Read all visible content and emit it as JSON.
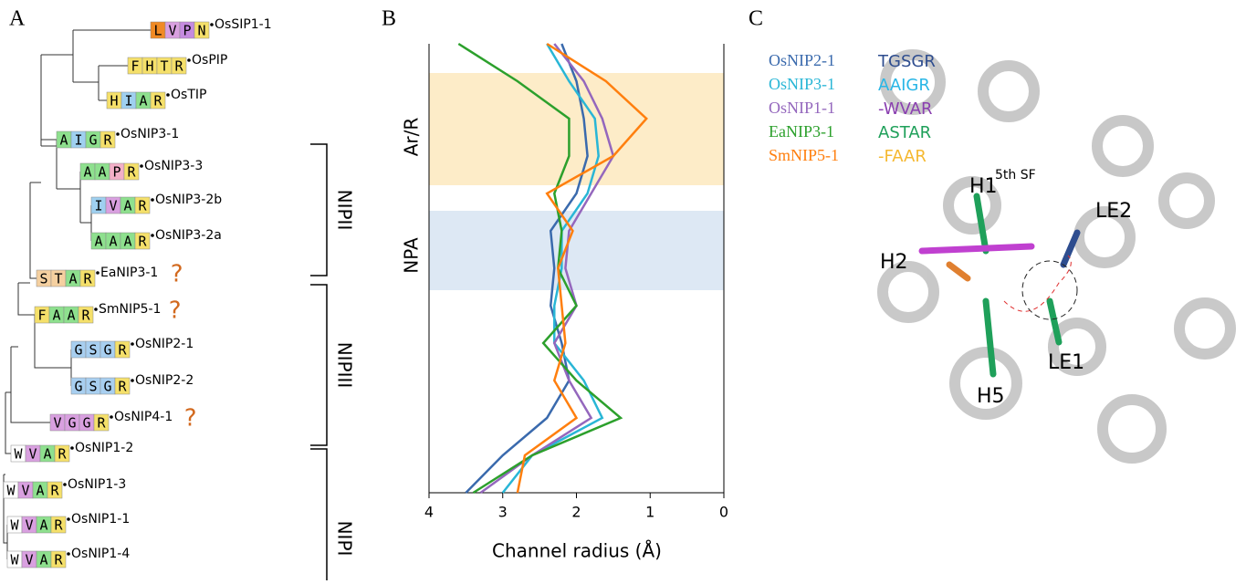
{
  "panel_labels": [
    "A",
    "B",
    "C"
  ],
  "tree": {
    "leaves": [
      {
        "motif": [
          "L",
          "V",
          "P",
          "N"
        ],
        "colors": [
          "#f08a24",
          "#d9a0e0",
          "#c58be0",
          "#f5e06a"
        ],
        "label": "OsSIP1-1"
      },
      {
        "motif": [
          "F",
          "H",
          "T",
          "R"
        ],
        "colors": [
          "#f5e06a",
          "#f5e06a",
          "#f5e06a",
          "#f5e06a"
        ],
        "label": "OsPIP"
      },
      {
        "motif": [
          "H",
          "I",
          "A",
          "R"
        ],
        "colors": [
          "#f5e06a",
          "#9fd0f0",
          "#8ee08e",
          "#f5e06a"
        ],
        "label": "OsTIP"
      },
      {
        "motif": [
          "A",
          "I",
          "G",
          "R"
        ],
        "colors": [
          "#8ee08e",
          "#9fd0f0",
          "#8ee08e",
          "#f5e06a"
        ],
        "label": "OsNIP3-1"
      },
      {
        "motif": [
          "A",
          "A",
          "P",
          "R"
        ],
        "colors": [
          "#8ee08e",
          "#8ee08e",
          "#f3b0c8",
          "#f5e06a"
        ],
        "label": "OsNIP3-3"
      },
      {
        "motif": [
          "I",
          "V",
          "A",
          "R"
        ],
        "colors": [
          "#9fd0f0",
          "#d9a0e0",
          "#8ee08e",
          "#f5e06a"
        ],
        "label": "OsNIP3-2b"
      },
      {
        "motif": [
          "A",
          "A",
          "A",
          "R"
        ],
        "colors": [
          "#8ee08e",
          "#8ee08e",
          "#8ee08e",
          "#f5e06a"
        ],
        "label": "OsNIP3-2a"
      },
      {
        "motif": [
          "S",
          "T",
          "A",
          "R"
        ],
        "colors": [
          "#f5d0a0",
          "#f5d0a0",
          "#8ee08e",
          "#f5e06a"
        ],
        "label": "EaNIP3-1",
        "mark": "?"
      },
      {
        "motif": [
          "F",
          "A",
          "A",
          "R"
        ],
        "colors": [
          "#f5e06a",
          "#8ee08e",
          "#8ee08e",
          "#f5e06a"
        ],
        "label": "SmNIP5-1",
        "mark": "?"
      },
      {
        "motif": [
          "G",
          "S",
          "G",
          "R"
        ],
        "colors": [
          "#a8cff0",
          "#a8cff0",
          "#a8cff0",
          "#f5e06a"
        ],
        "label": "OsNIP2-1"
      },
      {
        "motif": [
          "G",
          "S",
          "G",
          "R"
        ],
        "colors": [
          "#a8cff0",
          "#a8cff0",
          "#a8cff0",
          "#f5e06a"
        ],
        "label": "OsNIP2-2"
      },
      {
        "motif": [
          "V",
          "G",
          "G",
          "R"
        ],
        "colors": [
          "#d9a0e0",
          "#d9a0e0",
          "#d9a0e0",
          "#f5e06a"
        ],
        "label": "OsNIP4-1",
        "mark": "?"
      },
      {
        "motif": [
          "W",
          "V",
          "A",
          "R"
        ],
        "colors": [
          "#ffffff",
          "#d9a0e0",
          "#8ee08e",
          "#f5e06a"
        ],
        "label": "OsNIP1-2"
      },
      {
        "motif": [
          "W",
          "V",
          "A",
          "R"
        ],
        "colors": [
          "#ffffff",
          "#d9a0e0",
          "#8ee08e",
          "#f5e06a"
        ],
        "label": "OsNIP1-3"
      },
      {
        "motif": [
          "W",
          "V",
          "A",
          "R"
        ],
        "colors": [
          "#ffffff",
          "#d9a0e0",
          "#8ee08e",
          "#f5e06a"
        ],
        "label": "OsNIP1-1"
      },
      {
        "motif": [
          "W",
          "V",
          "A",
          "R"
        ],
        "colors": [
          "#ffffff",
          "#d9a0e0",
          "#8ee08e",
          "#f5e06a"
        ],
        "label": "OsNIP1-4"
      }
    ],
    "groups": [
      "NIPII",
      "NIPIII",
      "NIPI"
    ]
  },
  "chart_data": {
    "type": "line",
    "orientation": "horizontal",
    "x_label": "Channel radius (Å)",
    "xlim": [
      4,
      0
    ],
    "xticks": [
      4,
      3,
      2,
      1,
      0
    ],
    "categories": [
      null,
      null,
      null,
      null,
      null,
      null,
      null,
      null,
      null,
      null,
      null,
      null,
      null
    ],
    "annotations": [
      "Ar/R",
      "NPA"
    ],
    "series": [
      {
        "name": "OsNIP2-1",
        "color": "#3a6aad",
        "values": [
          2.2,
          2.0,
          1.9,
          1.85,
          2.0,
          2.35,
          2.3,
          2.35,
          2.2,
          2.1,
          2.4,
          3.0,
          3.5
        ]
      },
      {
        "name": "OsNIP3-1",
        "color": "#29b6d6",
        "values": [
          2.4,
          2.1,
          1.75,
          1.7,
          1.85,
          2.2,
          2.2,
          2.3,
          2.3,
          1.9,
          1.65,
          2.6,
          3.0
        ]
      },
      {
        "name": "OsNIP1-1",
        "color": "#9467bd",
        "values": [
          2.3,
          1.9,
          1.65,
          1.5,
          1.8,
          2.1,
          2.15,
          2.0,
          2.3,
          2.1,
          1.8,
          2.6,
          3.3
        ]
      },
      {
        "name": "EaNIP3-1",
        "color": "#2ca02c",
        "values": [
          3.6,
          2.8,
          2.1,
          2.1,
          2.3,
          2.2,
          2.25,
          2.0,
          2.45,
          2.0,
          1.4,
          2.6,
          3.4
        ]
      },
      {
        "name": "SmNIP5-1",
        "color": "#ff7f0e",
        "values": [
          2.4,
          1.6,
          1.05,
          1.5,
          2.4,
          2.05,
          2.25,
          2.2,
          2.15,
          2.3,
          2.0,
          2.7,
          2.8
        ]
      }
    ]
  },
  "structure": {
    "legend": [
      {
        "name": "OsNIP2-1",
        "motif": "TGSGR",
        "color": "#2e4d8f"
      },
      {
        "name": "OsNIP3-1",
        "motif": "AAIGR",
        "color": "#29b6e6"
      },
      {
        "name": "OsNIP1-1",
        "motif": "-WVAR",
        "color": "#8a3fb0"
      },
      {
        "name": "EaNIP3-1",
        "motif": "ASTAR",
        "color": "#1fa05a"
      },
      {
        "name": "SmNIP5-1",
        "motif": "-FAAR",
        "color": "#f5b830"
      }
    ],
    "labels": [
      "H1",
      "5th SF",
      "LE2",
      "H2",
      "LE1",
      "H5"
    ]
  }
}
